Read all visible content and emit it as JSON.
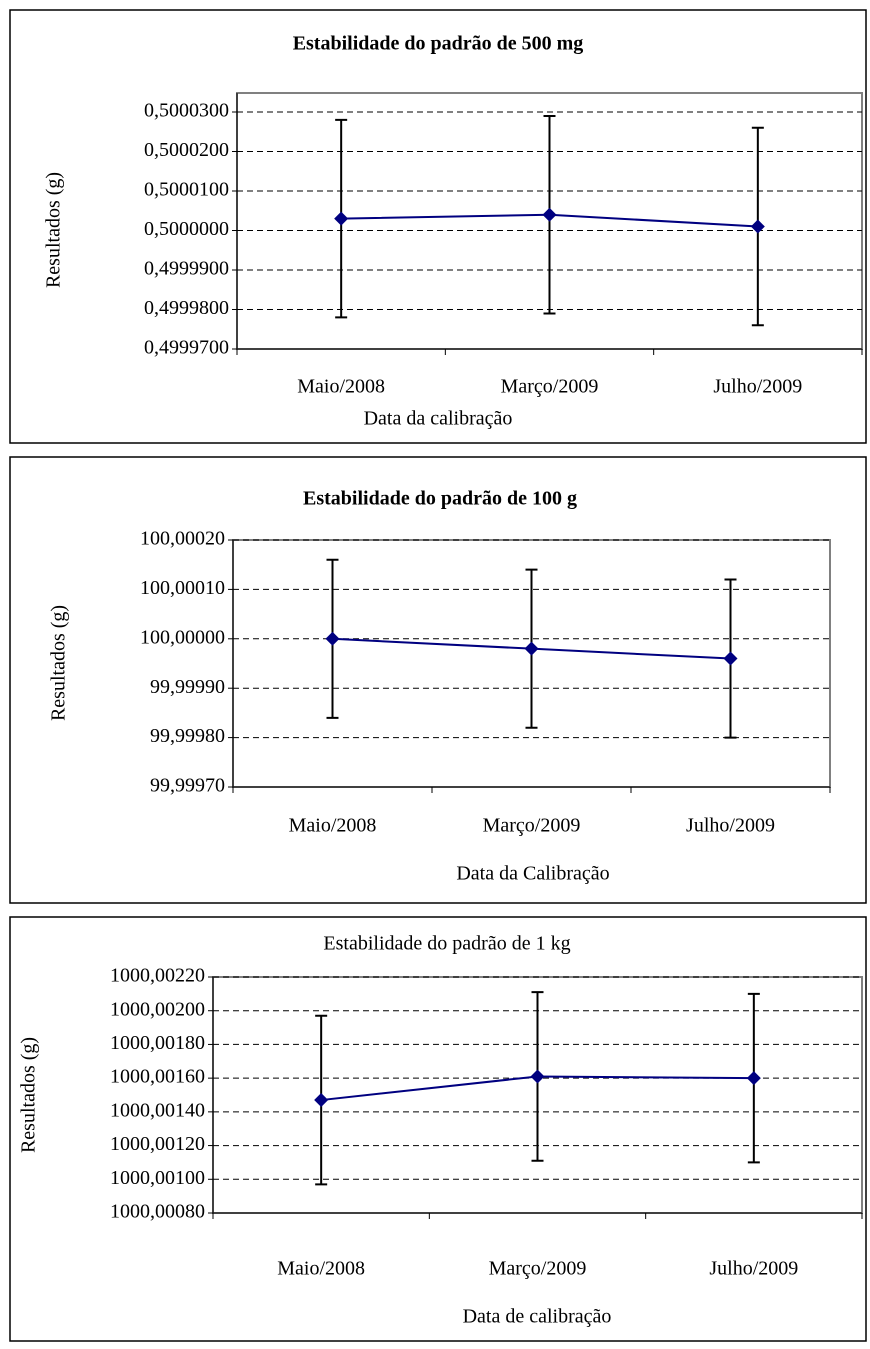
{
  "chart_data": [
    {
      "type": "line",
      "title": "Estabilidade do padrão de 500 mg",
      "x_label": "Data da calibração",
      "y_label": "Resultados (g)",
      "categories": [
        "Maio/2008",
        "Março/2009",
        "Julho/2009"
      ],
      "values": [
        0.500003,
        0.500004,
        0.500001
      ],
      "errors": [
        2.5e-05,
        2.5e-05,
        2.5e-05
      ],
      "color": "#000080",
      "ylim": [
        0.49997,
        0.50003
      ],
      "yticks": [
        {
          "value": 0.49997,
          "label": "0,4999700"
        },
        {
          "value": 0.49998,
          "label": "0,4999800"
        },
        {
          "value": 0.49999,
          "label": "0,4999900"
        },
        {
          "value": 0.5,
          "label": "0,5000000"
        },
        {
          "value": 0.50001,
          "label": "0,5000100"
        },
        {
          "value": 0.50002,
          "label": "0,5000200"
        },
        {
          "value": 0.50003,
          "label": "0,5000300"
        }
      ],
      "grid": true
    },
    {
      "type": "line",
      "title": "Estabilidade do padrão de 100 g",
      "x_label": "Data da Calibração",
      "y_label": "Resultados (g)",
      "categories": [
        "Maio/2008",
        "Março/2009",
        "Julho/2009"
      ],
      "values": [
        100.0,
        99.99998,
        99.99996
      ],
      "errors": [
        0.00016,
        0.00016,
        0.00016
      ],
      "color": "#000080",
      "ylim": [
        99.9997,
        100.0002
      ],
      "yticks": [
        {
          "value": 99.9997,
          "label": "99,99970"
        },
        {
          "value": 99.9998,
          "label": "99,99980"
        },
        {
          "value": 99.9999,
          "label": "99,99990"
        },
        {
          "value": 100.0,
          "label": "100,00000"
        },
        {
          "value": 100.0001,
          "label": "100,00010"
        },
        {
          "value": 100.0002,
          "label": "100,00020"
        }
      ],
      "grid": true
    },
    {
      "type": "line",
      "title": "Estabilidade do padrão de 1 kg",
      "x_label": "Data de calibração",
      "y_label": "Resultados (g)",
      "categories": [
        "Maio/2008",
        "Março/2009",
        "Julho/2009"
      ],
      "values": [
        1000.00147,
        1000.00161,
        1000.0016
      ],
      "errors": [
        0.0005,
        0.0005,
        0.0005
      ],
      "color": "#000080",
      "ylim": [
        1000.0008,
        1000.0022
      ],
      "yticks": [
        {
          "value": 1000.0008,
          "label": "1000,00080"
        },
        {
          "value": 1000.001,
          "label": "1000,00100"
        },
        {
          "value": 1000.0012,
          "label": "1000,00120"
        },
        {
          "value": 1000.0014,
          "label": "1000,00140"
        },
        {
          "value": 1000.0016,
          "label": "1000,00160"
        },
        {
          "value": 1000.0018,
          "label": "1000,00180"
        },
        {
          "value": 1000.002,
          "label": "1000,00200"
        },
        {
          "value": 1000.0022,
          "label": "1000,00220"
        }
      ],
      "grid": true
    }
  ]
}
